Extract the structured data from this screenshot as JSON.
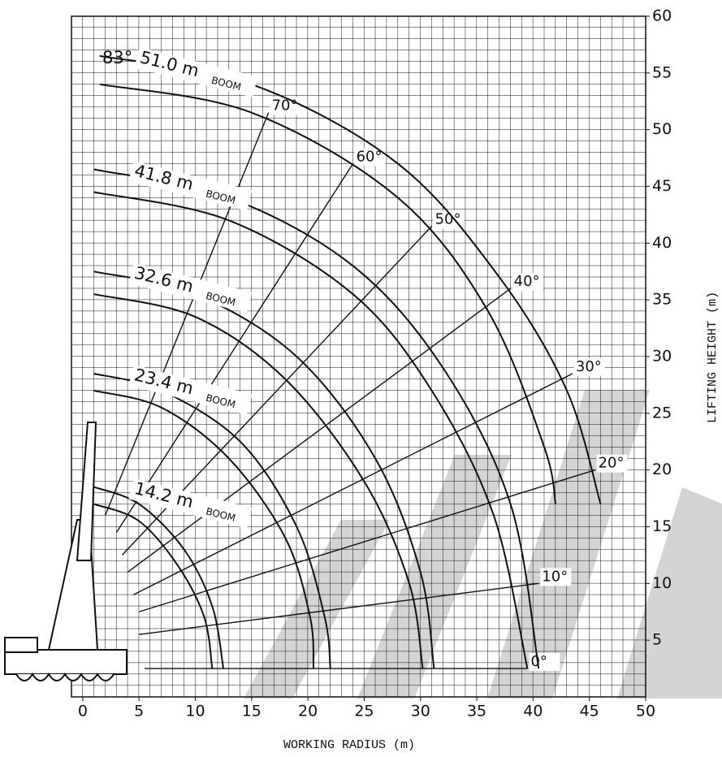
{
  "chart_data": {
    "type": "working-range",
    "x_label": "WORKING RADIUS (m)",
    "y_label": "LIFTING HEIGHT (m)",
    "xlim": [
      -1,
      50
    ],
    "ylim": [
      0,
      60
    ],
    "xticks": [
      0,
      5,
      10,
      15,
      20,
      25,
      30,
      35,
      40,
      45,
      50
    ],
    "yticks": [
      5,
      10,
      15,
      20,
      25,
      30,
      35,
      40,
      45,
      50,
      55,
      60
    ],
    "grid": true,
    "max_angle_label": "83°",
    "booms": [
      {
        "label": "51.0 m",
        "word": "BOOM",
        "curves": [
          {
            "x": [
              1.5,
              15,
              28,
              37,
              43,
              46
            ],
            "y": [
              56.5,
              54,
              47,
              37,
              27,
              17
            ]
          },
          {
            "x": [
              1.5,
              15,
              28,
              36,
              41,
              42
            ],
            "y": [
              54,
              51.5,
              44,
              34,
              22,
              17
            ]
          }
        ]
      },
      {
        "label": "41.8 m",
        "word": "BOOM",
        "curves": [
          {
            "x": [
              1,
              13,
              24,
              32,
              38,
              40.5
            ],
            "y": [
              46.5,
              44,
              38,
              29,
              17,
              2.5
            ]
          },
          {
            "x": [
              1,
              13,
              24,
              31,
              36.5,
              39.5
            ],
            "y": [
              44.5,
              42,
              35.5,
              27,
              16,
              2.5
            ]
          }
        ]
      },
      {
        "label": "32.6 m",
        "word": "BOOM",
        "curves": [
          {
            "x": [
              1,
              10,
              19,
              26,
              30,
              31.2
            ],
            "y": [
              37.5,
              35.5,
              30,
              21,
              11,
              2.5
            ]
          },
          {
            "x": [
              1,
              10,
              18,
              25,
              29,
              30.2
            ],
            "y": [
              35.5,
              33.5,
              28,
              19,
              10,
              2.5
            ]
          }
        ]
      },
      {
        "label": "23.4 m",
        "word": "BOOM",
        "curves": [
          {
            "x": [
              1,
              7,
              14,
              19,
              21.5,
              22
            ],
            "y": [
              28.5,
              27,
              22.5,
              15,
              7,
              2.5
            ]
          },
          {
            "x": [
              1,
              7,
              13,
              18,
              20.2,
              20.5
            ],
            "y": [
              27,
              25.5,
              21,
              14,
              7,
              2.5
            ]
          }
        ]
      },
      {
        "label": "14.2 m",
        "word": "BOOM",
        "curves": [
          {
            "x": [
              1,
              5,
              9,
              11.5,
              12.5
            ],
            "y": [
              18.5,
              17,
              13,
              8,
              2.5
            ]
          },
          {
            "x": [
              1,
              5,
              8.5,
              10.8,
              11.5
            ],
            "y": [
              17,
              15.5,
              11.5,
              7,
              2.5
            ]
          }
        ]
      }
    ],
    "angle_lines": [
      {
        "label": "70°",
        "x": [
          2,
          16.5
        ],
        "y": [
          16,
          51.5
        ]
      },
      {
        "label": "60°",
        "x": [
          3,
          24
        ],
        "y": [
          14.5,
          47
        ]
      },
      {
        "label": "50°",
        "x": [
          3.5,
          31
        ],
        "y": [
          12.5,
          41.5
        ]
      },
      {
        "label": "40°",
        "x": [
          4,
          38
        ],
        "y": [
          11,
          36
        ]
      },
      {
        "label": "30°",
        "x": [
          4.5,
          43.5
        ],
        "y": [
          9,
          28.5
        ]
      },
      {
        "label": "20°",
        "x": [
          5,
          45.5
        ],
        "y": [
          7.5,
          20
        ]
      },
      {
        "label": "10°",
        "x": [
          5,
          40.5
        ],
        "y": [
          5.5,
          10
        ]
      },
      {
        "label": "0°",
        "x": [
          5.5,
          39.5
        ],
        "y": [
          2.5,
          2.5
        ]
      }
    ]
  }
}
